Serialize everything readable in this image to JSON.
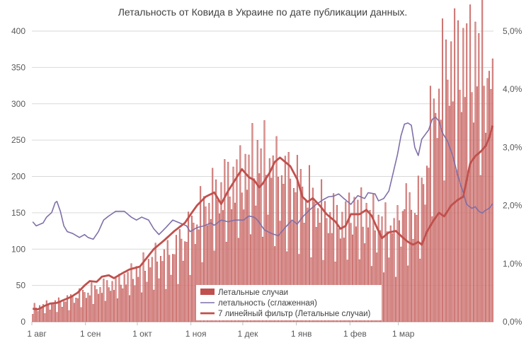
{
  "chart_data": {
    "type": "bar+line",
    "title": "Летальность от Ковида в Украине по дате публикации данных.",
    "x_ticks": [
      "1 авг",
      "1 сен",
      "1 окт",
      "1 ноя",
      "1 дек",
      "1 янв",
      "1 фев",
      "1 мар"
    ],
    "y_left": {
      "min": 0,
      "max": 400,
      "step": 50,
      "ticks": [
        "0",
        "50",
        "100",
        "150",
        "200",
        "250",
        "300",
        "350",
        "400"
      ]
    },
    "y_right": {
      "min": 0,
      "max": 5.0,
      "ticks": [
        "0,0%",
        "1,0%",
        "2,0%",
        "3,0%",
        "4,0%",
        "5,0%"
      ]
    },
    "grid": true,
    "legend": {
      "position": "bottom-center",
      "items": [
        {
          "key": "deaths",
          "label": "Летальные случаи"
        },
        {
          "key": "rate",
          "label": "летальность (сглаженная)"
        },
        {
          "key": "ma7",
          "label": "7 линейный фильтр (Летальные случаи)"
        }
      ]
    },
    "colors": {
      "bars": "#c0504d",
      "bars_fill": "#d99694",
      "rate": "#7f6fa8",
      "ma7": "#c0504d",
      "grid": "#d9d9d9"
    },
    "series": {
      "deaths_keypoints": [
        [
          0,
          18
        ],
        [
          10,
          22
        ],
        [
          20,
          28
        ],
        [
          31,
          38
        ],
        [
          40,
          45
        ],
        [
          50,
          52
        ],
        [
          61,
          65
        ],
        [
          70,
          78
        ],
        [
          80,
          85
        ],
        [
          92,
          120
        ],
        [
          100,
          150
        ],
        [
          110,
          175
        ],
        [
          122,
          190
        ],
        [
          130,
          210
        ],
        [
          140,
          190
        ],
        [
          148,
          180
        ],
        [
          153,
          175
        ],
        [
          160,
          160
        ],
        [
          170,
          140
        ],
        [
          180,
          130
        ],
        [
          184,
          145
        ],
        [
          190,
          140
        ],
        [
          200,
          125
        ],
        [
          210,
          115
        ],
        [
          215,
          150
        ],
        [
          219,
          140
        ],
        [
          223,
          150
        ],
        [
          226,
          175
        ],
        [
          230,
          240
        ],
        [
          234,
          290
        ],
        [
          240,
          340
        ]
      ],
      "ma7_keypoints": [
        [
          0,
          18
        ],
        [
          3,
          17
        ],
        [
          7,
          22
        ],
        [
          10,
          25
        ],
        [
          14,
          26
        ],
        [
          18,
          30
        ],
        [
          22,
          34
        ],
        [
          26,
          40
        ],
        [
          30,
          50
        ],
        [
          33,
          56
        ],
        [
          37,
          55
        ],
        [
          40,
          62
        ],
        [
          44,
          64
        ],
        [
          47,
          60
        ],
        [
          52,
          67
        ],
        [
          56,
          72
        ],
        [
          62,
          76
        ],
        [
          66,
          88
        ],
        [
          70,
          100
        ],
        [
          76,
          112
        ],
        [
          82,
          125
        ],
        [
          88,
          136
        ],
        [
          92,
          150
        ],
        [
          95,
          160
        ],
        [
          100,
          172
        ],
        [
          105,
          178
        ],
        [
          109,
          162
        ],
        [
          113,
          180
        ],
        [
          117,
          195
        ],
        [
          121,
          210
        ],
        [
          125,
          199
        ],
        [
          128,
          195
        ],
        [
          131,
          185
        ],
        [
          133,
          190
        ],
        [
          137,
          205
        ],
        [
          140,
          220
        ],
        [
          143,
          226
        ],
        [
          146,
          220
        ],
        [
          149,
          214
        ],
        [
          153,
          196
        ],
        [
          156,
          172
        ],
        [
          159,
          165
        ],
        [
          162,
          170
        ],
        [
          166,
          160
        ],
        [
          170,
          148
        ],
        [
          175,
          138
        ],
        [
          178,
          128
        ],
        [
          181,
          132
        ],
        [
          184,
          148
        ],
        [
          189,
          148
        ],
        [
          193,
          154
        ],
        [
          196,
          146
        ],
        [
          199,
          130
        ],
        [
          202,
          115
        ],
        [
          206,
          123
        ],
        [
          210,
          125
        ],
        [
          214,
          116
        ],
        [
          217,
          110
        ],
        [
          220,
          106
        ],
        [
          223,
          110
        ],
        [
          225,
          106
        ],
        [
          228,
          124
        ],
        [
          232,
          140
        ],
        [
          235,
          150
        ],
        [
          238,
          145
        ],
        [
          242,
          160
        ],
        [
          246,
          168
        ],
        [
          249,
          172
        ],
        [
          253,
          218
        ],
        [
          256,
          228
        ],
        [
          259,
          234
        ],
        [
          262,
          242
        ],
        [
          264,
          253
        ],
        [
          266,
          270
        ]
      ],
      "rate_keypoints": [
        [
          0,
          1.72
        ],
        [
          2,
          1.65
        ],
        [
          6,
          1.7
        ],
        [
          8,
          1.8
        ],
        [
          11,
          1.88
        ],
        [
          13,
          2.05
        ],
        [
          14,
          2.07
        ],
        [
          16,
          1.9
        ],
        [
          18,
          1.65
        ],
        [
          20,
          1.55
        ],
        [
          23,
          1.52
        ],
        [
          27,
          1.45
        ],
        [
          30,
          1.5
        ],
        [
          32,
          1.45
        ],
        [
          35,
          1.42
        ],
        [
          38,
          1.55
        ],
        [
          41,
          1.75
        ],
        [
          44,
          1.82
        ],
        [
          48,
          1.9
        ],
        [
          53,
          1.9
        ],
        [
          57,
          1.8
        ],
        [
          60,
          1.75
        ],
        [
          63,
          1.8
        ],
        [
          67,
          1.75
        ],
        [
          70,
          1.6
        ],
        [
          73,
          1.5
        ],
        [
          77,
          1.62
        ],
        [
          81,
          1.75
        ],
        [
          85,
          1.7
        ],
        [
          89,
          1.65
        ],
        [
          91,
          1.55
        ],
        [
          95,
          1.62
        ],
        [
          99,
          1.65
        ],
        [
          103,
          1.7
        ],
        [
          105,
          1.66
        ],
        [
          109,
          1.75
        ],
        [
          113,
          1.72
        ],
        [
          117,
          1.75
        ],
        [
          122,
          1.75
        ],
        [
          125,
          1.82
        ],
        [
          128,
          1.8
        ],
        [
          130,
          1.75
        ],
        [
          134,
          1.58
        ],
        [
          138,
          1.52
        ],
        [
          142,
          1.48
        ],
        [
          146,
          1.62
        ],
        [
          150,
          1.75
        ],
        [
          153,
          1.68
        ],
        [
          156,
          1.8
        ],
        [
          160,
          1.92
        ],
        [
          164,
          2.02
        ],
        [
          168,
          2.1
        ],
        [
          171,
          2.15
        ],
        [
          174,
          2.16
        ],
        [
          177,
          2.2
        ],
        [
          180,
          2.12
        ],
        [
          184,
          2.02
        ],
        [
          188,
          2.17
        ],
        [
          192,
          2.12
        ],
        [
          194,
          2.22
        ],
        [
          198,
          2.2
        ],
        [
          200,
          2.08
        ],
        [
          203,
          2.12
        ],
        [
          206,
          2.25
        ],
        [
          208,
          2.5
        ],
        [
          211,
          2.88
        ],
        [
          213,
          3.2
        ],
        [
          215,
          3.4
        ],
        [
          217,
          3.42
        ],
        [
          219,
          3.38
        ],
        [
          221,
          3.0
        ],
        [
          223,
          2.86
        ],
        [
          225,
          3.14
        ],
        [
          227,
          3.22
        ],
        [
          229,
          3.3
        ],
        [
          231,
          3.48
        ],
        [
          233,
          3.52
        ],
        [
          235,
          3.45
        ],
        [
          237,
          3.25
        ],
        [
          240,
          3.1
        ],
        [
          243,
          2.85
        ],
        [
          246,
          2.5
        ],
        [
          249,
          2.22
        ],
        [
          251,
          2.02
        ],
        [
          254,
          1.95
        ],
        [
          256,
          1.98
        ],
        [
          258,
          1.9
        ],
        [
          260,
          1.87
        ],
        [
          262,
          1.92
        ],
        [
          264,
          1.95
        ],
        [
          266,
          2.03
        ]
      ]
    }
  }
}
